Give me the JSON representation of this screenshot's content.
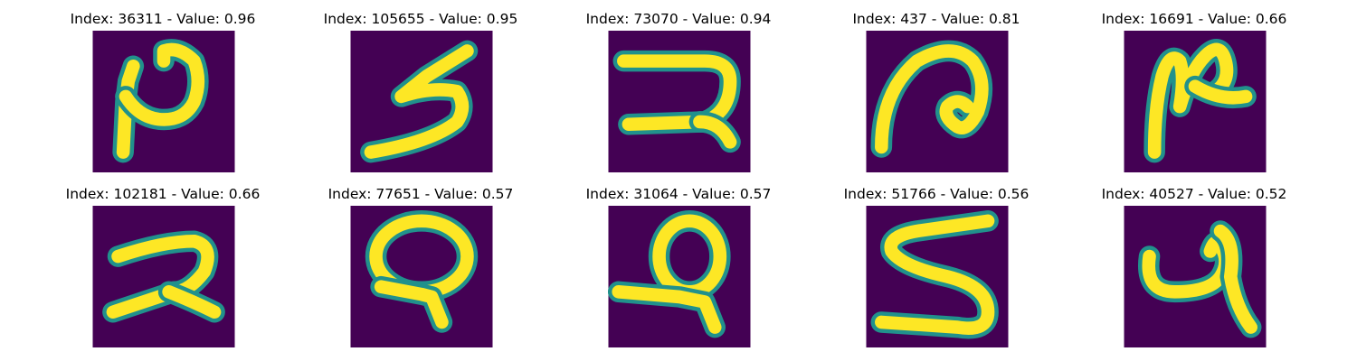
{
  "colors": {
    "background": "#440154",
    "stroke": "#fde725",
    "edge": "#21918c"
  },
  "panels": [
    {
      "title": "Index: 36311 - Value: 0.96",
      "glyph": "curl-2"
    },
    {
      "title": "Index: 105655 - Value: 0.95",
      "glyph": "five"
    },
    {
      "title": "Index: 73070 - Value: 0.94",
      "glyph": "open-2"
    },
    {
      "title": "Index: 437 - Value: 0.81",
      "glyph": "at-swirl"
    },
    {
      "title": "Index: 16691 - Value: 0.66",
      "glyph": "squiggle-n"
    },
    {
      "title": "Index: 102181 - Value: 0.66",
      "glyph": "two"
    },
    {
      "title": "Index: 77651 - Value: 0.57",
      "glyph": "loop-q"
    },
    {
      "title": "Index: 31064 - Value: 0.57",
      "glyph": "loop-b"
    },
    {
      "title": "Index: 51766 - Value: 0.56",
      "glyph": "s-five"
    },
    {
      "title": "Index: 40527 - Value: 0.52",
      "glyph": "four-ish"
    }
  ]
}
